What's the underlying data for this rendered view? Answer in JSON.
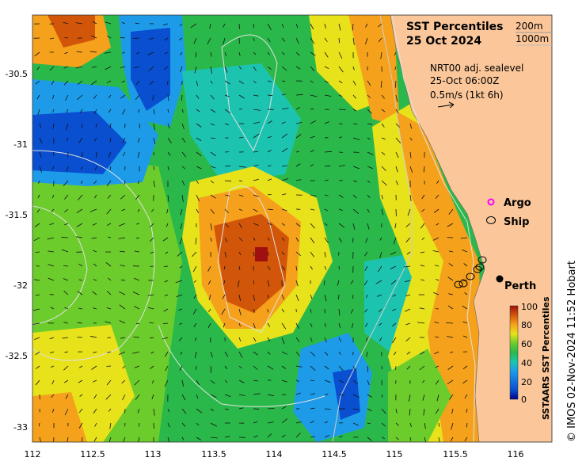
{
  "map": {
    "title_line1": "SST Percentiles",
    "title_line2": "25 Oct 2024",
    "isobath_200": "200m",
    "isobath_1000": "1000m",
    "current_label_line1": "NRT00 adj. sealevel",
    "current_label_line2": "25-Oct 06:00Z",
    "current_label_line3": "0.5m/s (1kt 6h)",
    "legend_argo": "Argo",
    "legend_ship": "Ship",
    "city": "Perth",
    "credit": "© IMOS 02-Nov-2024 11:52 Hobart",
    "colorbar_title": "SSTAARS SST Percentiles",
    "colorbar_ticks": [
      "100",
      "80",
      "60",
      "40",
      "20",
      "0"
    ],
    "x_ticks": [
      "112",
      "112.5",
      "113",
      "113.5",
      "114",
      "114.5",
      "115",
      "115.5",
      "116"
    ],
    "y_ticks": [
      "-30.5",
      "-31",
      "-31.5",
      "-32",
      "-32.5",
      "-33"
    ],
    "colors": {
      "land": "#fbc79a",
      "argo": "#ff00ff",
      "p0": "#00008b",
      "p10": "#0a4fd0",
      "p20": "#1d9be8",
      "p30": "#1cc4b0",
      "p40": "#2bb84a",
      "p50": "#6ccc2c",
      "p60": "#e8e21a",
      "p70": "#f5a11c",
      "p80": "#d2560a",
      "p90": "#a01010"
    }
  }
}
